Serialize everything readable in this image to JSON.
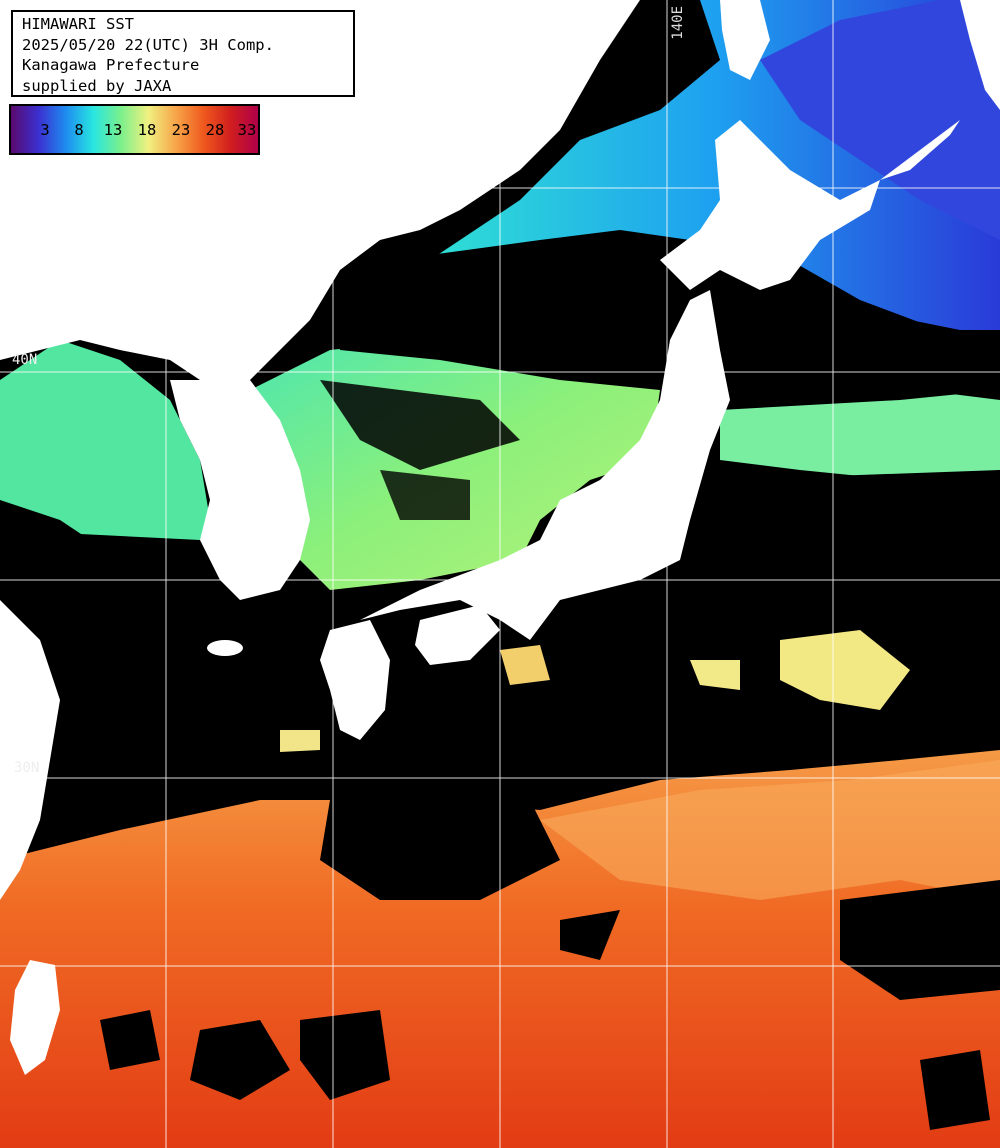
{
  "title": {
    "line1": "HIMAWARI SST",
    "line2": "2025/05/20 22(UTC) 3H Comp.",
    "line3": "Kanagawa Prefecture",
    "line4": "supplied by JAXA"
  },
  "legend": {
    "ticks": [
      "3",
      "8",
      "13",
      "18",
      "23",
      "28",
      "33"
    ],
    "colors": [
      "#5a0a6e",
      "#3b2fd0",
      "#1e8cf0",
      "#28e6e0",
      "#7af08c",
      "#f0f080",
      "#f7a64a",
      "#f05a1e",
      "#d01e1e",
      "#b0004a"
    ]
  },
  "grid": {
    "lon_label": "140E",
    "lat_labels": [
      "40N",
      "30N"
    ]
  },
  "colors": {
    "land": "#ffffff",
    "cloud": "#000000",
    "grid": "#ffffff"
  }
}
